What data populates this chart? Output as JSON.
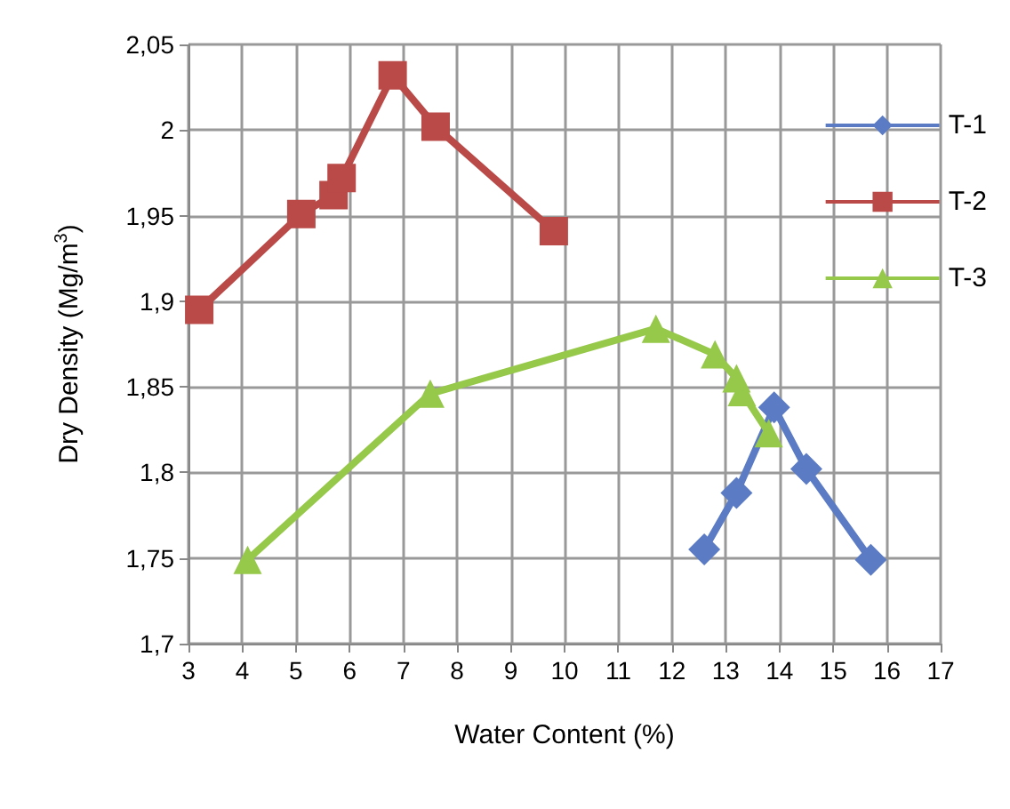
{
  "chart_data": {
    "type": "line",
    "xlabel": "Water Content (%)",
    "ylabel": "Dry Density (Mg/m$^{3}$)",
    "xlim": [
      3,
      17
    ],
    "xticks": [
      3,
      4,
      5,
      6,
      7,
      8,
      9,
      10,
      11,
      12,
      13,
      14,
      15,
      16,
      17
    ],
    "ylim": [
      1.7,
      2.05
    ],
    "yticks": [
      {
        "value": 1.7,
        "label": "1,7"
      },
      {
        "value": 1.75,
        "label": "1,75"
      },
      {
        "value": 1.8,
        "label": "1,8"
      },
      {
        "value": 1.85,
        "label": "1,85"
      },
      {
        "value": 1.9,
        "label": "1,9"
      },
      {
        "value": 1.95,
        "label": "1,95"
      },
      2,
      {
        "value": 2.05,
        "label": "2,05"
      }
    ],
    "grid": true,
    "legend": "top right",
    "series": [
      {
        "name": "T-1",
        "color": "#5b7bc4",
        "marker": "diamond",
        "x": [
          12.6,
          13.2,
          13.9,
          14.5,
          15.7
        ],
        "values": [
          1.755,
          1.788,
          1.838,
          1.802,
          1.749
        ]
      },
      {
        "name": "T-2",
        "color": "#b94a48",
        "marker": "square",
        "x": [
          3.2,
          5.1,
          5.7,
          5.85,
          6.8,
          7.6,
          9.8
        ],
        "values": [
          1.895,
          1.951,
          1.962,
          1.972,
          2.032,
          2.002,
          1.941
        ]
      },
      {
        "name": "T-3",
        "color": "#96c84a",
        "marker": "triangle",
        "x": [
          4.1,
          7.5,
          11.7,
          12.8,
          13.2,
          13.3,
          13.8
        ],
        "values": [
          1.749,
          1.846,
          1.884,
          1.869,
          1.855,
          1.847,
          1.823
        ]
      }
    ]
  }
}
